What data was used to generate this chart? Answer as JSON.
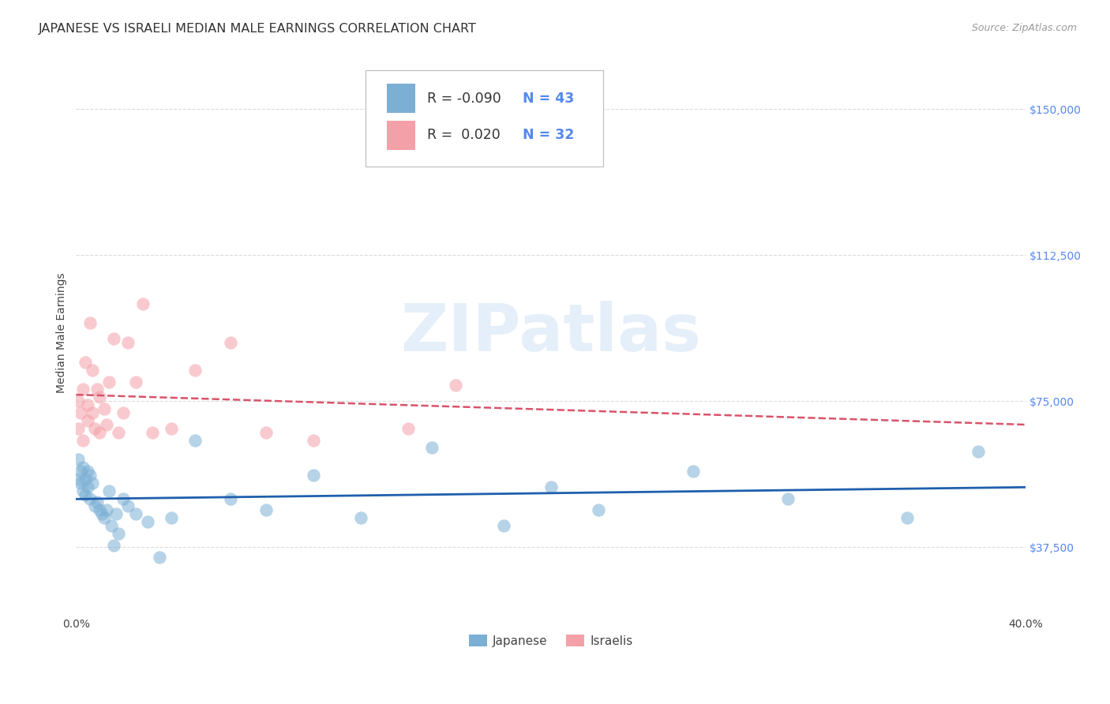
{
  "title": "JAPANESE VS ISRAELI MEDIAN MALE EARNINGS CORRELATION CHART",
  "source": "Source: ZipAtlas.com",
  "ylabel": "Median Male Earnings",
  "watermark": "ZIPatlas",
  "xlim": [
    0.0,
    0.4
  ],
  "ylim": [
    20000,
    165000
  ],
  "yticks": [
    37500,
    75000,
    112500,
    150000
  ],
  "ytick_labels": [
    "$37,500",
    "$75,000",
    "$112,500",
    "$150,000"
  ],
  "xtick_positions": [
    0.0,
    0.05,
    0.1,
    0.15,
    0.2,
    0.25,
    0.3,
    0.35,
    0.4
  ],
  "xtick_labels": [
    "0.0%",
    "",
    "",
    "",
    "",
    "",
    "",
    "",
    "40.0%"
  ],
  "legend_r_japanese": "-0.090",
  "legend_n_japanese": "43",
  "legend_r_israeli": "0.020",
  "legend_n_israeli": "32",
  "blue_color": "#7BAFD4",
  "pink_color": "#F4A0A8",
  "blue_line_color": "#1F5FAD",
  "pink_line_color": "#D9536A",
  "background_color": "#FFFFFF",
  "grid_color": "#CCCCCC",
  "japanese_x": [
    0.001,
    0.001,
    0.002,
    0.002,
    0.003,
    0.003,
    0.004,
    0.004,
    0.005,
    0.005,
    0.006,
    0.006,
    0.007,
    0.008,
    0.009,
    0.01,
    0.011,
    0.012,
    0.013,
    0.014,
    0.015,
    0.016,
    0.017,
    0.018,
    0.02,
    0.022,
    0.025,
    0.03,
    0.035,
    0.04,
    0.05,
    0.065,
    0.08,
    0.1,
    0.12,
    0.15,
    0.18,
    0.2,
    0.22,
    0.26,
    0.3,
    0.35,
    0.38
  ],
  "japanese_y": [
    60000,
    55000,
    57000,
    54000,
    58000,
    52000,
    55000,
    51000,
    57000,
    53000,
    56000,
    50000,
    54000,
    48000,
    49000,
    47000,
    46000,
    45000,
    47000,
    52000,
    43000,
    38000,
    46000,
    41000,
    50000,
    48000,
    46000,
    44000,
    35000,
    45000,
    65000,
    50000,
    47000,
    56000,
    45000,
    63000,
    43000,
    53000,
    47000,
    57000,
    50000,
    45000,
    62000
  ],
  "israeli_x": [
    0.001,
    0.001,
    0.002,
    0.003,
    0.003,
    0.004,
    0.005,
    0.005,
    0.006,
    0.007,
    0.007,
    0.008,
    0.009,
    0.01,
    0.01,
    0.012,
    0.013,
    0.014,
    0.016,
    0.018,
    0.02,
    0.022,
    0.025,
    0.028,
    0.032,
    0.04,
    0.05,
    0.065,
    0.08,
    0.1,
    0.14,
    0.16
  ],
  "israeli_y": [
    75000,
    68000,
    72000,
    78000,
    65000,
    85000,
    70000,
    74000,
    95000,
    72000,
    83000,
    68000,
    78000,
    76000,
    67000,
    73000,
    69000,
    80000,
    91000,
    67000,
    72000,
    90000,
    80000,
    100000,
    67000,
    68000,
    83000,
    90000,
    67000,
    65000,
    68000,
    79000
  ],
  "title_fontsize": 11.5,
  "axis_label_fontsize": 10,
  "tick_fontsize": 10,
  "legend_fontsize": 12.5
}
